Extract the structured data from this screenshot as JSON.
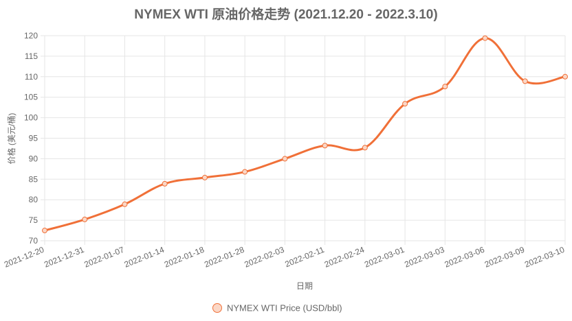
{
  "chart_data": {
    "type": "line",
    "title": "NYMEX WTI 原油价格走势 (2021.12.20 - 2022.3.10)",
    "xlabel": "日期",
    "ylabel": "价格 (美元/桶)",
    "categories": [
      "2021-12-20",
      "2021-12-31",
      "2022-01-07",
      "2022-01-14",
      "2022-01-18",
      "2022-01-28",
      "2022-02-03",
      "2022-02-11",
      "2022-02-24",
      "2022-03-01",
      "2022-03-03",
      "2022-03-06",
      "2022-03-09",
      "2022-03-10"
    ],
    "series": [
      {
        "name": "NYMEX WTI Price (USD/bbl)",
        "values": [
          72.5,
          75.2,
          78.9,
          83.9,
          85.4,
          86.8,
          90.0,
          93.2,
          92.7,
          103.4,
          107.6,
          119.4,
          108.9,
          110.0
        ],
        "color": "#f07038"
      }
    ],
    "ylim": [
      70,
      120
    ],
    "yticks": [
      70,
      75,
      80,
      85,
      90,
      95,
      100,
      105,
      110,
      115,
      120
    ],
    "grid": true,
    "legend": "bottom-center"
  }
}
